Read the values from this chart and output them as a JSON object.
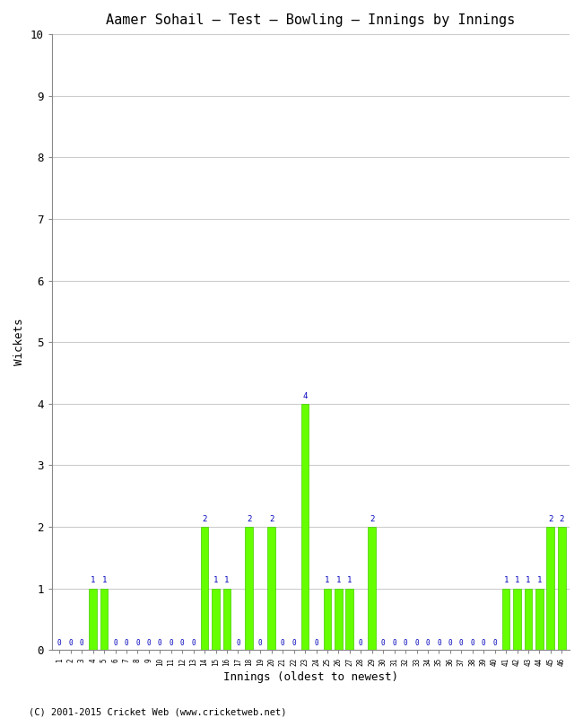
{
  "title": "Aamer Sohail – Test – Bowling – Innings by Innings",
  "xlabel": "Innings (oldest to newest)",
  "ylabel": "Wickets",
  "ylim": [
    0,
    10
  ],
  "copyright": "(C) 2001-2015 Cricket Web (www.cricketweb.net)",
  "wickets": [
    0,
    0,
    0,
    1,
    1,
    0,
    0,
    0,
    0,
    0,
    0,
    0,
    0,
    2,
    1,
    1,
    0,
    2,
    0,
    2,
    0,
    0,
    4,
    0,
    1,
    1,
    1,
    0,
    2,
    0,
    0,
    0,
    0,
    0,
    0,
    0,
    0,
    0,
    0,
    0,
    1,
    1,
    1,
    1,
    2,
    2
  ]
}
